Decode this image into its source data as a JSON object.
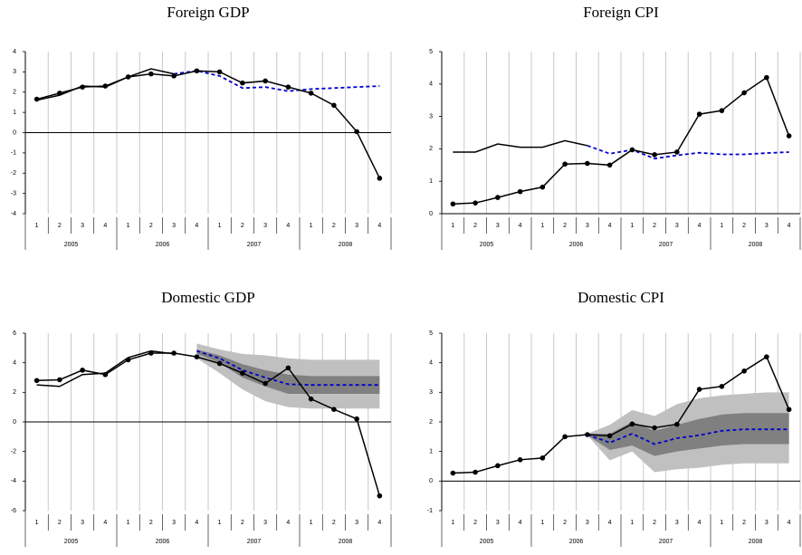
{
  "chart_data": [
    {
      "type": "line",
      "title": "Foreign GDP",
      "categories": [
        "1",
        "2",
        "3",
        "4",
        "1",
        "2",
        "3",
        "4",
        "1",
        "2",
        "3",
        "4",
        "1",
        "2",
        "3",
        "4"
      ],
      "x_groups": [
        "2005",
        "2006",
        "2007",
        "2008"
      ],
      "ylim": [
        -4,
        4
      ],
      "yticks": [
        -4,
        -3,
        -2,
        -1,
        0,
        1,
        2,
        3,
        4
      ],
      "grid": true,
      "series": [
        {
          "color": "#000000",
          "markers": false,
          "dashed": false,
          "values": [
            1.6,
            1.85,
            2.3,
            2.25,
            2.75,
            3.15,
            2.9,
            null,
            null,
            null,
            null,
            null,
            null,
            null,
            null,
            null
          ]
        },
        {
          "color": "#0000cc",
          "markers": false,
          "dashed": true,
          "values": [
            null,
            null,
            null,
            null,
            null,
            null,
            2.9,
            3.05,
            2.8,
            2.2,
            2.25,
            2.05,
            2.15,
            2.2,
            2.25,
            2.3
          ]
        },
        {
          "color": "#000000",
          "markers": true,
          "dashed": false,
          "values": [
            1.65,
            1.95,
            2.25,
            2.3,
            2.75,
            2.9,
            2.8,
            3.05,
            3.0,
            2.45,
            2.55,
            2.25,
            1.95,
            1.35,
            0.05,
            -2.25
          ]
        }
      ]
    },
    {
      "type": "line",
      "title": "Foreign CPI",
      "categories": [
        "1",
        "2",
        "3",
        "4",
        "1",
        "2",
        "3",
        "4",
        "1",
        "2",
        "3",
        "4",
        "1",
        "2",
        "3",
        "4"
      ],
      "x_groups": [
        "2005",
        "2006",
        "2007",
        "2008"
      ],
      "ylim": [
        0,
        5
      ],
      "yticks": [
        0,
        1,
        2,
        3,
        4,
        5
      ],
      "grid": true,
      "series": [
        {
          "color": "#000000",
          "markers": false,
          "dashed": false,
          "values": [
            1.9,
            1.9,
            2.15,
            2.05,
            2.05,
            2.25,
            2.1,
            null,
            null,
            null,
            null,
            null,
            null,
            null,
            null,
            null
          ]
        },
        {
          "color": "#0000cc",
          "markers": false,
          "dashed": true,
          "values": [
            null,
            null,
            null,
            null,
            null,
            null,
            2.1,
            1.85,
            1.97,
            1.7,
            1.8,
            1.88,
            1.83,
            1.83,
            1.87,
            1.9
          ]
        },
        {
          "color": "#000000",
          "markers": true,
          "dashed": false,
          "values": [
            0.3,
            0.33,
            0.5,
            0.68,
            0.82,
            1.53,
            1.55,
            1.5,
            1.97,
            1.82,
            1.9,
            3.07,
            3.18,
            3.73,
            4.2,
            2.4
          ]
        }
      ]
    },
    {
      "type": "line",
      "title": "Domestic GDP",
      "categories": [
        "1",
        "2",
        "3",
        "4",
        "1",
        "2",
        "3",
        "4",
        "1",
        "2",
        "3",
        "4",
        "1",
        "2",
        "3",
        "4"
      ],
      "x_groups": [
        "2005",
        "2006",
        "2007",
        "2008"
      ],
      "ylim": [
        -6,
        6
      ],
      "yticks": [
        -6,
        -4,
        -2,
        0,
        2,
        4,
        6
      ],
      "grid": true,
      "bands": [
        {
          "color": "#c0c0c0",
          "upper": [
            null,
            null,
            null,
            null,
            null,
            null,
            null,
            5.3,
            4.9,
            4.6,
            4.5,
            4.3,
            4.2,
            4.2,
            4.2,
            4.2
          ],
          "lower": [
            null,
            null,
            null,
            null,
            null,
            null,
            null,
            4.3,
            3.3,
            2.2,
            1.4,
            1.0,
            0.9,
            0.9,
            0.9,
            0.9
          ]
        },
        {
          "color": "#808080",
          "upper": [
            null,
            null,
            null,
            null,
            null,
            null,
            null,
            4.9,
            4.5,
            3.9,
            3.5,
            3.2,
            3.1,
            3.1,
            3.1,
            3.1
          ],
          "lower": [
            null,
            null,
            null,
            null,
            null,
            null,
            null,
            4.6,
            4.0,
            3.0,
            2.4,
            1.9,
            1.9,
            1.9,
            1.9,
            1.9
          ]
        }
      ],
      "series": [
        {
          "color": "#000000",
          "markers": false,
          "dashed": false,
          "values": [
            2.5,
            2.4,
            3.2,
            3.3,
            4.35,
            4.8,
            4.6,
            null,
            null,
            null,
            null,
            null,
            null,
            null,
            null,
            null
          ]
        },
        {
          "color": "#0000cc",
          "markers": false,
          "dashed": true,
          "values": [
            null,
            null,
            null,
            null,
            null,
            null,
            null,
            4.8,
            4.3,
            3.5,
            3.0,
            2.55,
            2.5,
            2.5,
            2.5,
            2.5
          ]
        },
        {
          "color": "#000000",
          "markers": true,
          "dashed": false,
          "values": [
            2.8,
            2.85,
            3.5,
            3.2,
            4.2,
            4.65,
            4.65,
            4.4,
            3.95,
            3.3,
            2.6,
            3.65,
            1.55,
            0.85,
            0.2,
            -5.0
          ]
        }
      ]
    },
    {
      "type": "line",
      "title": "Domestic CPI",
      "categories": [
        "1",
        "2",
        "3",
        "4",
        "1",
        "2",
        "3",
        "4",
        "1",
        "2",
        "3",
        "4",
        "1",
        "2",
        "3",
        "4"
      ],
      "x_groups": [
        "2005",
        "2006",
        "2007",
        "2008"
      ],
      "ylim": [
        -1,
        5
      ],
      "yticks": [
        -1,
        0,
        1,
        2,
        3,
        4,
        5
      ],
      "grid": true,
      "bands": [
        {
          "color": "#c0c0c0",
          "upper": [
            null,
            null,
            null,
            null,
            null,
            null,
            1.6,
            1.9,
            2.4,
            2.2,
            2.6,
            2.8,
            2.9,
            2.95,
            3.0,
            3.0
          ],
          "lower": [
            null,
            null,
            null,
            null,
            null,
            null,
            1.55,
            0.7,
            1.0,
            0.3,
            0.4,
            0.45,
            0.55,
            0.6,
            0.6,
            0.6
          ]
        },
        {
          "color": "#808080",
          "upper": [
            null,
            null,
            null,
            null,
            null,
            null,
            1.6,
            1.6,
            2.0,
            1.7,
            1.9,
            2.1,
            2.25,
            2.3,
            2.3,
            2.3
          ],
          "lower": [
            null,
            null,
            null,
            null,
            null,
            null,
            1.55,
            1.05,
            1.2,
            0.85,
            1.0,
            1.1,
            1.2,
            1.25,
            1.25,
            1.25
          ]
        }
      ],
      "series": [
        {
          "color": "#0000cc",
          "markers": false,
          "dashed": true,
          "values": [
            null,
            null,
            null,
            null,
            null,
            null,
            1.57,
            1.3,
            1.6,
            1.25,
            1.45,
            1.55,
            1.7,
            1.75,
            1.75,
            1.75
          ]
        },
        {
          "color": "#000000",
          "markers": true,
          "dashed": false,
          "values": [
            0.27,
            0.3,
            0.52,
            0.72,
            0.78,
            1.5,
            1.57,
            1.53,
            1.93,
            1.8,
            1.92,
            3.1,
            3.2,
            3.72,
            4.2,
            2.42
          ]
        }
      ]
    }
  ]
}
